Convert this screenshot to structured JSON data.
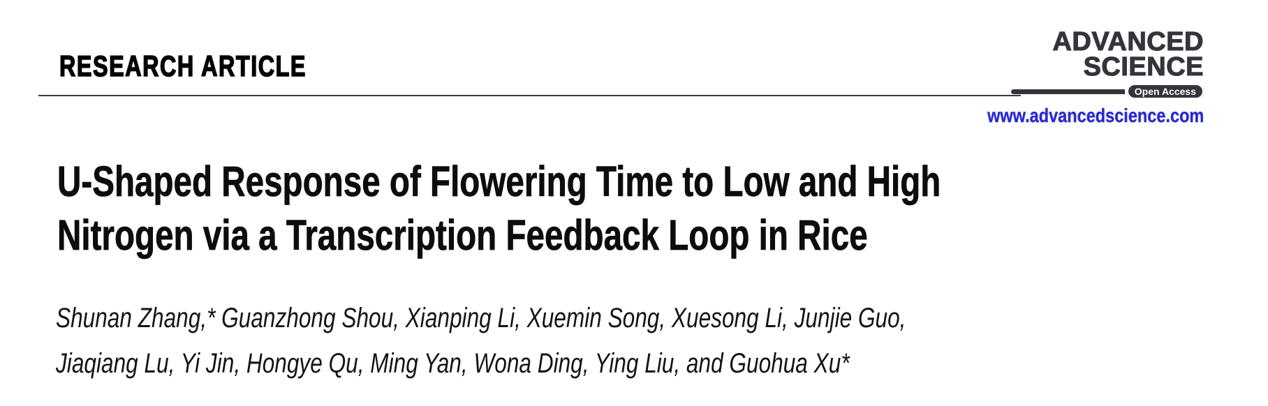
{
  "header": {
    "kicker": "RESEARCH ARTICLE"
  },
  "logo": {
    "name_line1": "ADVANCED",
    "name_line2": "SCIENCE",
    "open_access_label": "Open Access",
    "website_url": "www.advancedscience.com"
  },
  "article": {
    "title_line1": "U-Shaped Response of Flowering Time to Low and High",
    "title_line2": "Nitrogen via a Transcription Feedback Loop in Rice",
    "authors_line1": "Shunan Zhang,* Guanzhong Shou, Xianping Li, Xuemin Song, Xuesong Li, Junjie Guo,",
    "authors_line2": "Jiaqiang Lu, Yi Jin, Hongye Qu, Ming Yan, Wona Ding, Ying Liu, and Guohua Xu*"
  },
  "colors": {
    "logo_charcoal": "#35333b",
    "link_blue": "#2a2ad4",
    "rule_gray": "#3a3a3a",
    "text_black": "#0d0d0d"
  }
}
